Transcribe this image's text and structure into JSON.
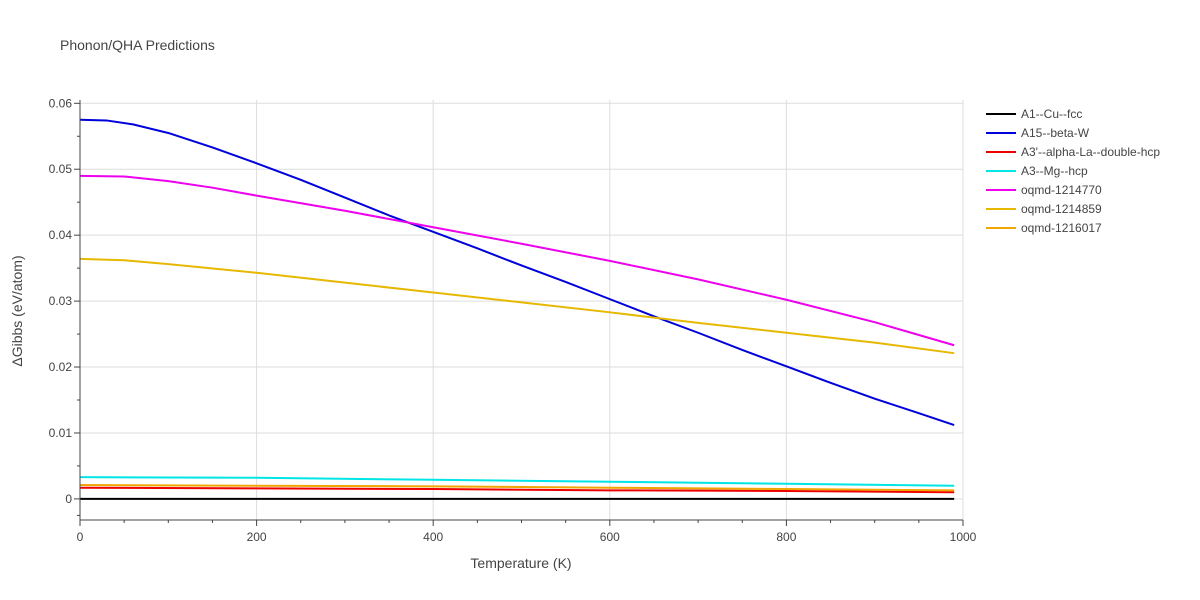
{
  "chart_data": {
    "type": "line",
    "title": "Phonon/QHA Predictions",
    "xlabel": "Temperature (K)",
    "ylabel": "ΔGibbs (eV/atom)",
    "xlim": [
      0,
      1000
    ],
    "ylim": [
      -0.0032,
      0.0605
    ],
    "x_ticks": [
      0,
      200,
      400,
      600,
      800,
      1000
    ],
    "x_tick_labels": [
      "0",
      "200",
      "400",
      "600",
      "800",
      "1000"
    ],
    "y_ticks": [
      0,
      0.01,
      0.02,
      0.03,
      0.04,
      0.05,
      0.06
    ],
    "y_tick_labels": [
      "0",
      "0.01",
      "0.02",
      "0.03",
      "0.04",
      "0.05",
      "0.06"
    ],
    "grid": true,
    "legend_position": "top-right",
    "series": [
      {
        "name": "A1--Cu--fcc",
        "color": "#000000",
        "x": [
          0,
          990
        ],
        "y": [
          0,
          0
        ]
      },
      {
        "name": "A15--beta-W",
        "color": "#0000dd",
        "x": [
          0,
          30,
          60,
          100,
          150,
          200,
          250,
          300,
          350,
          400,
          450,
          500,
          550,
          600,
          650,
          700,
          750,
          800,
          850,
          900,
          950,
          990
        ],
        "y": [
          0.0575,
          0.0574,
          0.0568,
          0.0555,
          0.0533,
          0.0509,
          0.0484,
          0.0457,
          0.043,
          0.0405,
          0.038,
          0.0354,
          0.0329,
          0.0303,
          0.0277,
          0.0252,
          0.0226,
          0.0201,
          0.0176,
          0.0152,
          0.013,
          0.0112
        ]
      },
      {
        "name": "A3'--alpha-La--double-hcp",
        "color": "#ee0000",
        "x": [
          0,
          200,
          400,
          600,
          800,
          990
        ],
        "y": [
          0.0017,
          0.0016,
          0.0015,
          0.0013,
          0.0012,
          0.001
        ]
      },
      {
        "name": "A3--Mg--hcp",
        "color": "#00e5e5",
        "x": [
          0,
          200,
          400,
          600,
          800,
          990
        ],
        "y": [
          0.0033,
          0.0032,
          0.0029,
          0.0026,
          0.0023,
          0.002
        ]
      },
      {
        "name": "oqmd-1214770",
        "color": "#ee00ee",
        "x": [
          0,
          50,
          100,
          150,
          200,
          300,
          400,
          500,
          600,
          700,
          800,
          900,
          990
        ],
        "y": [
          0.049,
          0.0489,
          0.0482,
          0.0472,
          0.046,
          0.0437,
          0.0412,
          0.0387,
          0.0361,
          0.0333,
          0.0302,
          0.0268,
          0.0233
        ]
      },
      {
        "name": "oqmd-1214859",
        "color": "#e6b800",
        "x": [
          0,
          50,
          100,
          200,
          300,
          400,
          500,
          600,
          700,
          800,
          900,
          990
        ],
        "y": [
          0.0364,
          0.0362,
          0.0356,
          0.0343,
          0.0328,
          0.0313,
          0.0298,
          0.0283,
          0.0267,
          0.0252,
          0.0237,
          0.0221
        ]
      },
      {
        "name": "oqmd-1216017",
        "color": "#f0a500",
        "x": [
          0,
          200,
          400,
          600,
          800,
          990
        ],
        "y": [
          0.0021,
          0.002,
          0.0019,
          0.0017,
          0.0015,
          0.0013
        ]
      }
    ]
  }
}
